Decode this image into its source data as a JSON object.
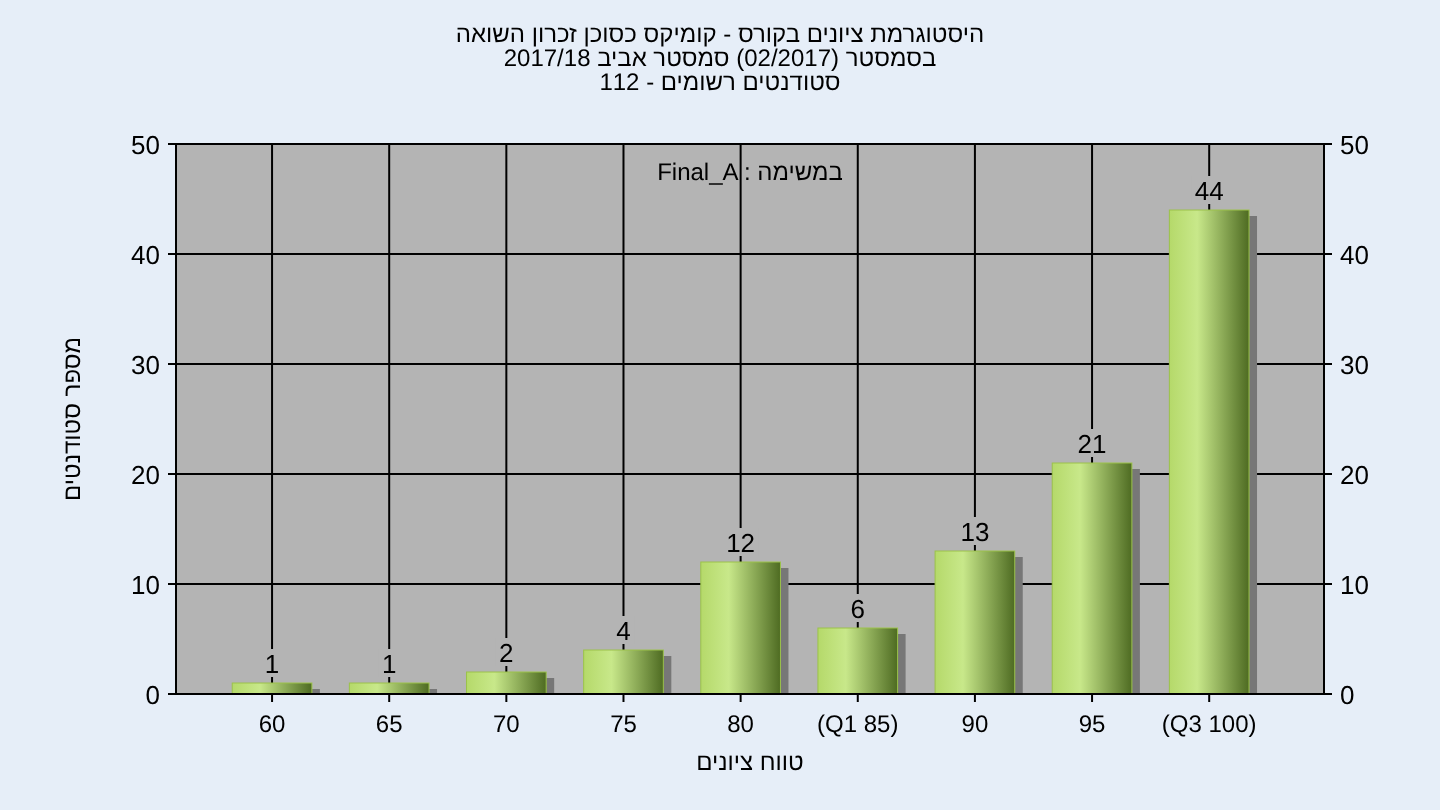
{
  "chart_data": {
    "type": "bar",
    "title": "היסטוגרמת ציונים בקורס - קומיקס כסוכן זכרון השואה\nבסמסטר (02/2017) סמסטר אביב 2017/18\nסטודנטים רשומים - 112",
    "xlabel": "טווח ציונים",
    "ylabel": "מספר סטודנטים",
    "categories": [
      "60",
      "65",
      "70",
      "75",
      "80",
      "(Q1 85)",
      "90",
      "95",
      "(Q3 100)"
    ],
    "series": [
      {
        "color": "#9bc24a",
        "values": [
          1,
          1,
          2,
          4,
          12,
          6,
          13,
          21,
          44
        ]
      }
    ],
    "data_labels": true,
    "annotations": [
      "Final_A : במשימה"
    ],
    "ylim": [
      0,
      50
    ],
    "yticks": [
      0,
      10,
      20,
      30,
      40,
      50
    ],
    "y2lim": [
      0,
      50
    ],
    "y2ticks": [
      0,
      10,
      20,
      30,
      40,
      50
    ],
    "grid": true
  }
}
